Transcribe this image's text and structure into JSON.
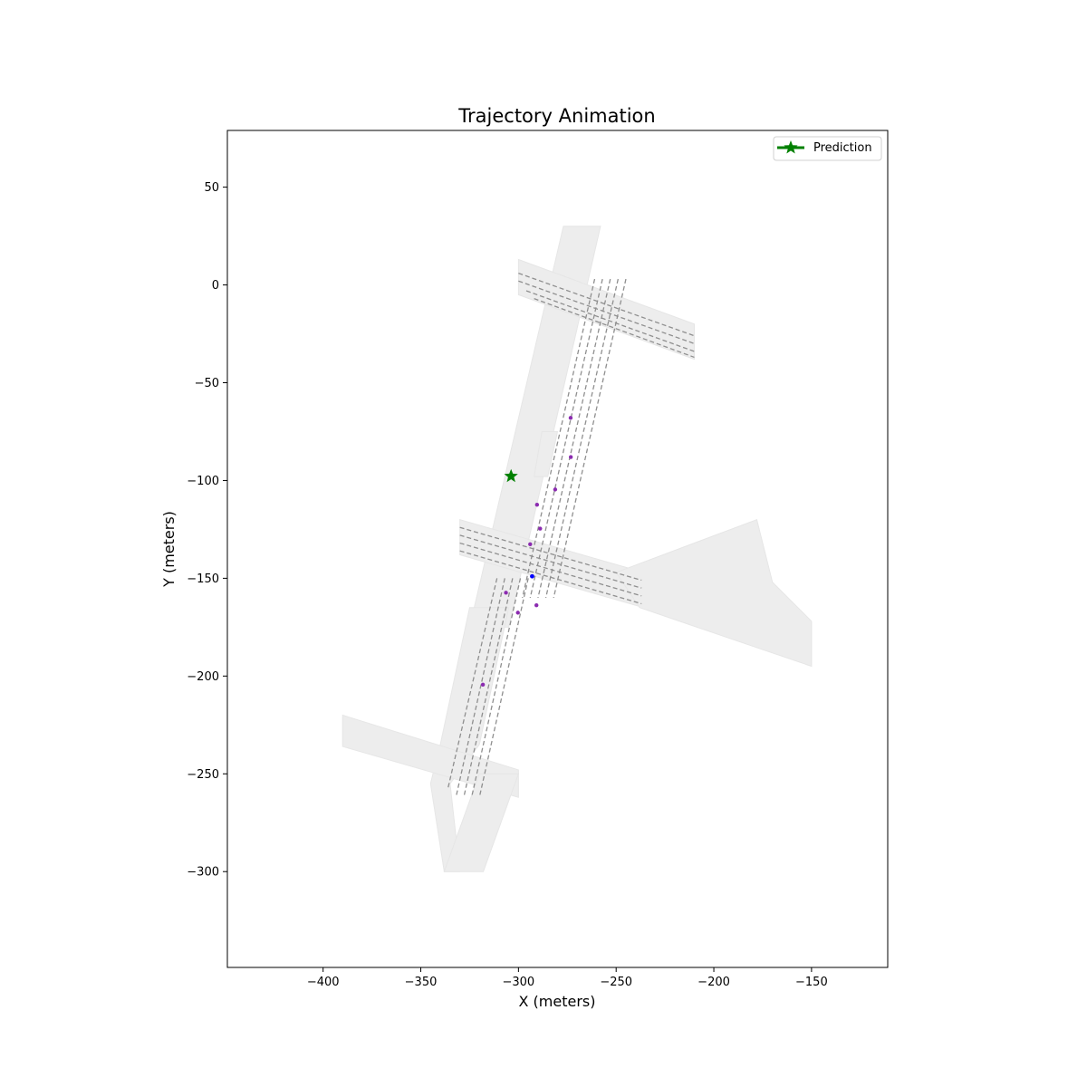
{
  "chart_data": {
    "type": "scatter",
    "title": "Trajectory Animation",
    "xlabel": "X (meters)",
    "ylabel": "Y (meters)",
    "xlim": [
      -449,
      -111
    ],
    "ylim": [
      -349,
      79
    ],
    "xticks": [
      -400,
      -350,
      -300,
      -250,
      -200,
      -150
    ],
    "xtick_labels": [
      "−400",
      "−350",
      "−300",
      "−250",
      "−200",
      "−150"
    ],
    "yticks": [
      50,
      0,
      -50,
      -100,
      -150,
      -200,
      -250,
      -300
    ],
    "ytick_labels": [
      "50",
      "0",
      "−50",
      "−100",
      "−150",
      "−200",
      "−250",
      "−300"
    ],
    "grid": false,
    "legend": {
      "placement": "top-right",
      "entries": [
        {
          "label": "Prediction",
          "color": "#008000",
          "marker": "star"
        }
      ]
    },
    "prediction": {
      "x": -303.8,
      "y": -97.8,
      "color": "#008000"
    },
    "ego": {
      "x": -293,
      "y": -149,
      "color": "#0000ff"
    },
    "agents": {
      "color": "#8b2bb0",
      "points": [
        [
          -273.3,
          -68
        ],
        [
          -273.2,
          -88
        ],
        [
          -281.2,
          -104.6
        ],
        [
          -290.5,
          -112.4
        ],
        [
          -288.9,
          -124.6
        ],
        [
          -294,
          -132.6
        ],
        [
          -306.4,
          -157.4
        ],
        [
          -290.8,
          -163.8
        ],
        [
          -300.3,
          -167.6
        ],
        [
          -318.2,
          -204.4
        ]
      ]
    },
    "map": {
      "road_color": "#ededed",
      "lane_color": "#8f8f8f",
      "roads": [
        [
          [
            -277,
            30
          ],
          [
            -258,
            30
          ],
          [
            -305,
            -175
          ],
          [
            -325,
            -175
          ]
        ],
        [
          [
            -325,
            -165
          ],
          [
            -305,
            -165
          ],
          [
            -320,
            -235
          ],
          [
            -335,
            -255
          ],
          [
            -330,
            -300
          ],
          [
            -338,
            -300
          ],
          [
            -345,
            -255
          ],
          [
            -340,
            -235
          ]
        ],
        [
          [
            -300,
            13
          ],
          [
            -210,
            -20
          ],
          [
            -210,
            -38
          ],
          [
            -300,
            -5
          ]
        ],
        [
          [
            -330,
            -120
          ],
          [
            -236,
            -147
          ],
          [
            -236,
            -165
          ],
          [
            -330,
            -138
          ]
        ],
        [
          [
            -250,
            -147
          ],
          [
            -178,
            -120
          ],
          [
            -170,
            -152
          ],
          [
            -150,
            -172
          ],
          [
            -150,
            -195
          ],
          [
            -238,
            -165
          ]
        ],
        [
          [
            -390,
            -220
          ],
          [
            -300,
            -248
          ],
          [
            -300,
            -262
          ],
          [
            -390,
            -236
          ]
        ],
        [
          [
            -320,
            -250
          ],
          [
            -300,
            -250
          ],
          [
            -318,
            -300
          ],
          [
            -338,
            -300
          ]
        ],
        [
          [
            -288,
            -75
          ],
          [
            -280,
            -75
          ],
          [
            -285,
            -98
          ],
          [
            -292,
            -98
          ]
        ]
      ],
      "lanes": [
        [
          [
            -257,
            3
          ],
          [
            -294,
            -160
          ]
        ],
        [
          [
            -253,
            3
          ],
          [
            -290,
            -160
          ]
        ],
        [
          [
            -249,
            3
          ],
          [
            -286,
            -160
          ]
        ],
        [
          [
            -245,
            3
          ],
          [
            -282,
            -160
          ]
        ],
        [
          [
            -261,
            3
          ],
          [
            -298,
            -160
          ]
        ],
        [
          [
            -303,
            -150
          ],
          [
            -328,
            -262
          ]
        ],
        [
          [
            -299,
            -150
          ],
          [
            -324,
            -262
          ]
        ],
        [
          [
            -295,
            -150
          ],
          [
            -320,
            -262
          ]
        ],
        [
          [
            -307,
            -150
          ],
          [
            -332,
            -262
          ]
        ],
        [
          [
            -311,
            -150
          ],
          [
            -336,
            -257
          ]
        ],
        [
          [
            -300,
            6
          ],
          [
            -210,
            -26
          ]
        ],
        [
          [
            -300,
            2
          ],
          [
            -210,
            -30
          ]
        ],
        [
          [
            -296,
            -3
          ],
          [
            -210,
            -34
          ]
        ],
        [
          [
            -292,
            -7
          ],
          [
            -210,
            -37
          ]
        ],
        [
          [
            -330,
            -124
          ],
          [
            -237,
            -151
          ]
        ],
        [
          [
            -330,
            -128
          ],
          [
            -237,
            -155
          ]
        ],
        [
          [
            -330,
            -132
          ],
          [
            -237,
            -159
          ]
        ],
        [
          [
            -330,
            -136
          ],
          [
            -237,
            -163
          ]
        ]
      ]
    }
  }
}
